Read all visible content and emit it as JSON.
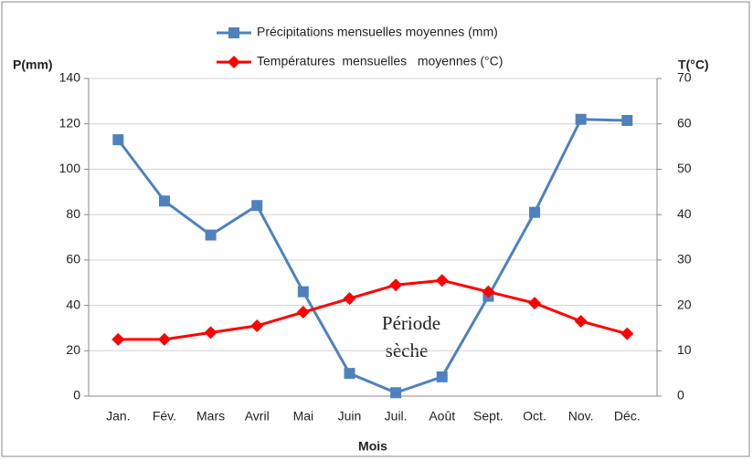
{
  "chart_data": {
    "type": "line",
    "y_label": "P(mm)",
    "y2_label": "T(°C)",
    "x_label": "Mois",
    "annotations": [
      "Période",
      "sèche"
    ],
    "categories": [
      "Jan.",
      "Fév.",
      "Mars",
      "Avril",
      "Mai",
      "Juin",
      "Juil.",
      "Août",
      "Sept.",
      "Oct.",
      "Nov.",
      "Déc."
    ],
    "series": [
      {
        "name": "Précipitations mensuelles moyennes (mm)",
        "color": "#4f81bd",
        "marker": "square",
        "values": [
          113,
          86,
          71,
          84,
          46,
          10,
          1.5,
          8.5,
          44,
          81,
          122,
          121.5
        ]
      },
      {
        "name": "Températures  mensuelles   moyennes (°C)",
        "color": "#ff0000",
        "marker": "diamond",
        "axis": "y2",
        "values": [
          12.5,
          12.5,
          14,
          15.5,
          18.5,
          21.5,
          24.5,
          25.5,
          23,
          20.5,
          16.5,
          13.75
        ]
      }
    ],
    "ylim": [
      0,
      140
    ],
    "yticks": [
      0,
      20,
      40,
      60,
      80,
      100,
      120,
      140
    ],
    "y2lim": [
      0,
      70
    ],
    "y2ticks": [
      0,
      10,
      20,
      30,
      40,
      50,
      60,
      70
    ],
    "grid": true
  }
}
